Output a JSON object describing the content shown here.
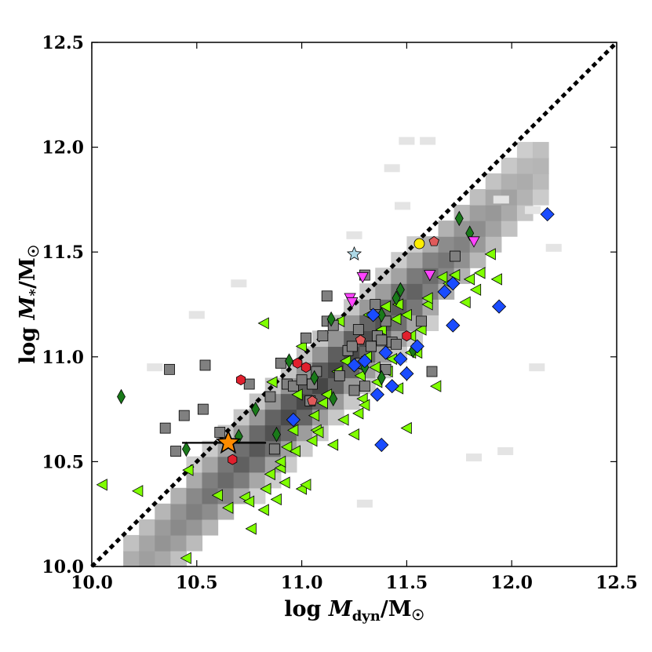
{
  "chart_data": {
    "type": "scatter",
    "title": "",
    "xlabel": {
      "prefix": "log ",
      "var": "M",
      "sub": "dyn",
      "suffix": "/M",
      "sym": "☉"
    },
    "ylabel": {
      "prefix": "log ",
      "var": "M",
      "sub": "*",
      "suffix": "/M",
      "sym": "☉"
    },
    "xlim": [
      10.0,
      12.5
    ],
    "ylim": [
      10.0,
      12.5
    ],
    "x_ticks": [
      10.0,
      10.5,
      11.0,
      11.5,
      12.0,
      12.5
    ],
    "y_ticks": [
      10.0,
      10.5,
      11.0,
      11.5,
      12.0,
      12.5
    ],
    "x_tick_labels": [
      "10.0",
      "10.5",
      "11.0",
      "11.5",
      "12.0",
      "12.5"
    ],
    "y_tick_labels": [
      "10.0",
      "10.5",
      "11.0",
      "11.5",
      "12.0",
      "12.5"
    ],
    "grid": false,
    "legend": "none",
    "one_to_one_line": {
      "x": [
        10.0,
        12.5
      ],
      "y": [
        10.0,
        12.5
      ],
      "color": "#000000",
      "style": "dotted"
    },
    "density_background": {
      "description_values": "2D histogram of log Mdyn vs log M*; bins of 0.075 dex",
      "bin_size": 0.075,
      "colormap": "greys",
      "peak_x_offset": -0.22,
      "spread_along": 0.5,
      "spread_across": 0.095,
      "outliers": [
        [
          11.6,
          12.03
        ],
        [
          11.5,
          12.03
        ],
        [
          11.43,
          11.9
        ],
        [
          11.25,
          11.58
        ],
        [
          11.48,
          11.72
        ],
        [
          10.7,
          11.35
        ],
        [
          10.5,
          11.2
        ],
        [
          12.1,
          11.7
        ],
        [
          11.95,
          11.75
        ],
        [
          12.2,
          11.52
        ],
        [
          12.12,
          10.95
        ],
        [
          11.97,
          10.55
        ],
        [
          11.82,
          10.52
        ],
        [
          11.3,
          10.3
        ],
        [
          10.3,
          10.95
        ]
      ]
    },
    "series": [
      {
        "marker": "triangle-left",
        "color": "#7fff00",
        "points": [
          [
            10.05,
            10.39
          ],
          [
            10.22,
            10.36
          ],
          [
            10.46,
            10.46
          ],
          [
            10.45,
            10.04
          ],
          [
            10.6,
            10.34
          ],
          [
            10.65,
            10.28
          ],
          [
            10.73,
            10.33
          ],
          [
            10.75,
            10.31
          ],
          [
            10.76,
            10.18
          ],
          [
            10.82,
            10.27
          ],
          [
            10.83,
            10.37
          ],
          [
            10.85,
            10.44
          ],
          [
            10.88,
            10.32
          ],
          [
            10.9,
            10.47
          ],
          [
            10.92,
            10.4
          ],
          [
            10.9,
            10.5
          ],
          [
            10.93,
            10.57
          ],
          [
            10.97,
            10.55
          ],
          [
            10.96,
            10.65
          ],
          [
            10.98,
            10.82
          ],
          [
            11.0,
            10.37
          ],
          [
            11.02,
            10.39
          ],
          [
            11.05,
            10.6
          ],
          [
            11.06,
            10.72
          ],
          [
            11.07,
            10.65
          ],
          [
            11.08,
            10.64
          ],
          [
            11.1,
            10.78
          ],
          [
            11.12,
            10.82
          ],
          [
            11.15,
            10.58
          ],
          [
            11.17,
            10.93
          ],
          [
            11.2,
            10.7
          ],
          [
            11.21,
            10.98
          ],
          [
            11.25,
            10.63
          ],
          [
            11.27,
            10.73
          ],
          [
            11.28,
            10.91
          ],
          [
            11.29,
            10.8
          ],
          [
            11.3,
            10.77
          ],
          [
            11.31,
            11.0
          ],
          [
            11.33,
            11.05
          ],
          [
            11.36,
            10.88
          ],
          [
            11.38,
            11.13
          ],
          [
            11.41,
            10.93
          ],
          [
            11.43,
            10.99
          ],
          [
            11.46,
            11.25
          ],
          [
            11.5,
            10.66
          ],
          [
            11.52,
            11.1
          ],
          [
            11.55,
            11.02
          ],
          [
            11.57,
            11.13
          ],
          [
            11.6,
            11.25
          ],
          [
            11.64,
            10.86
          ],
          [
            11.67,
            11.38
          ],
          [
            11.7,
            11.35
          ],
          [
            11.73,
            11.39
          ],
          [
            11.78,
            11.26
          ],
          [
            11.8,
            11.37
          ],
          [
            11.83,
            11.32
          ],
          [
            11.85,
            11.4
          ],
          [
            11.9,
            11.49
          ],
          [
            11.93,
            11.37
          ],
          [
            10.82,
            11.16
          ],
          [
            10.86,
            10.88
          ],
          [
            11.0,
            11.05
          ],
          [
            11.18,
            11.17
          ],
          [
            11.27,
            10.96
          ],
          [
            11.32,
            11.2
          ],
          [
            11.35,
            10.95
          ],
          [
            11.45,
            11.18
          ],
          [
            11.4,
            11.24
          ],
          [
            11.5,
            11.2
          ],
          [
            11.6,
            11.28
          ],
          [
            11.52,
            11.02
          ],
          [
            11.46,
            10.85
          ]
        ]
      },
      {
        "marker": "square",
        "color": "#808080",
        "points": [
          [
            10.35,
            10.66
          ],
          [
            10.37,
            10.94
          ],
          [
            10.4,
            10.55
          ],
          [
            10.44,
            10.72
          ],
          [
            10.53,
            10.75
          ],
          [
            10.54,
            10.96
          ],
          [
            10.61,
            10.64
          ],
          [
            10.75,
            10.87
          ],
          [
            10.85,
            10.81
          ],
          [
            10.87,
            10.56
          ],
          [
            10.9,
            10.97
          ],
          [
            10.93,
            10.87
          ],
          [
            10.96,
            10.86
          ],
          [
            11.0,
            10.89
          ],
          [
            11.04,
            10.79
          ],
          [
            11.05,
            10.87
          ],
          [
            11.07,
            10.93
          ],
          [
            11.02,
            11.09
          ],
          [
            11.1,
            11.1
          ],
          [
            11.12,
            11.17
          ],
          [
            11.15,
            11.15
          ],
          [
            11.18,
            10.91
          ],
          [
            11.22,
            11.03
          ],
          [
            11.24,
            11.05
          ],
          [
            11.27,
            11.13
          ],
          [
            11.28,
            10.97
          ],
          [
            11.3,
            10.86
          ],
          [
            11.33,
            11.05
          ],
          [
            11.36,
            11.1
          ],
          [
            11.38,
            11.08
          ],
          [
            11.4,
            11.17
          ],
          [
            11.43,
            11.07
          ],
          [
            11.45,
            11.06
          ],
          [
            11.35,
            11.25
          ],
          [
            11.3,
            11.39
          ],
          [
            11.57,
            11.17
          ],
          [
            11.62,
            10.93
          ],
          [
            11.73,
            11.48
          ],
          [
            11.12,
            11.29
          ],
          [
            11.25,
            10.84
          ],
          [
            11.4,
            10.94
          ]
        ]
      },
      {
        "marker": "thin-diamond",
        "color": "#1a7a1a",
        "points": [
          [
            10.14,
            10.81
          ],
          [
            10.45,
            10.56
          ],
          [
            10.7,
            10.62
          ],
          [
            10.78,
            10.75
          ],
          [
            10.88,
            10.63
          ],
          [
            10.94,
            10.98
          ],
          [
            11.06,
            10.9
          ],
          [
            11.14,
            11.18
          ],
          [
            11.15,
            10.8
          ],
          [
            11.3,
            10.95
          ],
          [
            11.38,
            11.2
          ],
          [
            11.45,
            11.28
          ],
          [
            11.47,
            11.32
          ],
          [
            11.5,
            10.92
          ],
          [
            11.53,
            11.03
          ],
          [
            11.75,
            11.66
          ],
          [
            11.8,
            11.59
          ],
          [
            11.38,
            10.9
          ]
        ]
      },
      {
        "marker": "diamond",
        "color": "#1a4cff",
        "points": [
          [
            10.96,
            10.7
          ],
          [
            11.25,
            10.96
          ],
          [
            11.3,
            10.98
          ],
          [
            11.34,
            11.2
          ],
          [
            11.36,
            10.82
          ],
          [
            11.38,
            10.58
          ],
          [
            11.4,
            11.02
          ],
          [
            11.43,
            10.86
          ],
          [
            11.47,
            10.99
          ],
          [
            11.5,
            10.92
          ],
          [
            11.68,
            11.31
          ],
          [
            11.72,
            11.35
          ],
          [
            11.72,
            11.15
          ],
          [
            11.94,
            11.24
          ],
          [
            12.17,
            11.68
          ],
          [
            11.55,
            11.05
          ]
        ]
      },
      {
        "marker": "hexagon",
        "color": "#e0202e",
        "points": [
          [
            10.67,
            10.51
          ],
          [
            10.71,
            10.89
          ],
          [
            10.98,
            10.97
          ],
          [
            11.02,
            10.95
          ],
          [
            11.5,
            11.1
          ]
        ]
      },
      {
        "marker": "pentagon",
        "color": "#e05a5a",
        "points": [
          [
            11.05,
            10.79
          ],
          [
            11.28,
            11.08
          ],
          [
            11.63,
            11.55
          ]
        ]
      },
      {
        "marker": "triangle-down",
        "color": "#ff44ff",
        "points": [
          [
            11.23,
            11.28
          ],
          [
            11.24,
            11.26
          ],
          [
            11.29,
            11.38
          ],
          [
            11.61,
            11.39
          ],
          [
            11.82,
            11.55
          ]
        ]
      },
      {
        "marker": "star",
        "color": "#add8e6",
        "points": [
          [
            11.25,
            11.49
          ]
        ]
      },
      {
        "marker": "circle",
        "color": "#ffee00",
        "points": [
          [
            11.56,
            11.54
          ]
        ]
      },
      {
        "marker": "star-large",
        "color": "#ff8c00",
        "points": [
          [
            10.65,
            10.59
          ]
        ],
        "xerr_range": [
          10.43,
          10.83
        ]
      }
    ]
  }
}
